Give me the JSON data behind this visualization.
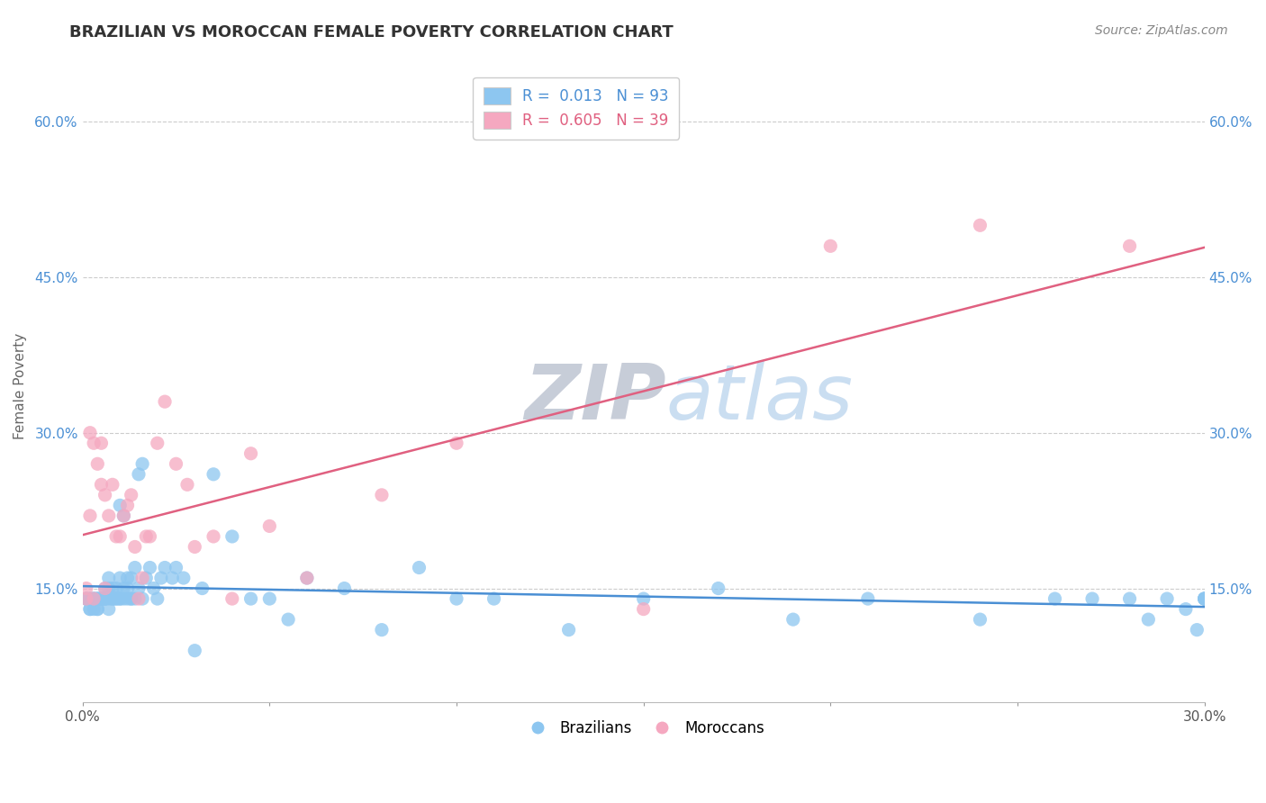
{
  "title": "BRAZILIAN VS MOROCCAN FEMALE POVERTY CORRELATION CHART",
  "source": "Source: ZipAtlas.com",
  "ylabel": "Female Poverty",
  "xlabel": "",
  "xlim": [
    0.0,
    0.3
  ],
  "ylim": [
    0.04,
    0.65
  ],
  "yticks": [
    0.15,
    0.3,
    0.45,
    0.6
  ],
  "ytick_labels": [
    "15.0%",
    "30.0%",
    "45.0%",
    "60.0%"
  ],
  "xticks": [
    0.0,
    0.05,
    0.1,
    0.15,
    0.2,
    0.25,
    0.3
  ],
  "xtick_labels": [
    "0.0%",
    "",
    "",
    "",
    "",
    "",
    "30.0%"
  ],
  "brazil_R": 0.013,
  "brazil_N": 93,
  "morocco_R": 0.605,
  "morocco_N": 39,
  "brazil_color": "#8dc6f0",
  "morocco_color": "#f5a8c0",
  "brazil_line_color": "#4a8fd4",
  "morocco_line_color": "#e06080",
  "brazil_scatter_x": [
    0.001,
    0.001,
    0.001,
    0.002,
    0.002,
    0.002,
    0.002,
    0.003,
    0.003,
    0.003,
    0.003,
    0.004,
    0.004,
    0.004,
    0.004,
    0.004,
    0.005,
    0.005,
    0.005,
    0.005,
    0.005,
    0.006,
    0.006,
    0.006,
    0.006,
    0.007,
    0.007,
    0.007,
    0.007,
    0.008,
    0.008,
    0.008,
    0.009,
    0.009,
    0.009,
    0.01,
    0.01,
    0.01,
    0.01,
    0.011,
    0.011,
    0.011,
    0.012,
    0.012,
    0.012,
    0.013,
    0.013,
    0.013,
    0.014,
    0.014,
    0.015,
    0.015,
    0.016,
    0.016,
    0.017,
    0.018,
    0.019,
    0.02,
    0.021,
    0.022,
    0.024,
    0.025,
    0.027,
    0.03,
    0.032,
    0.035,
    0.04,
    0.045,
    0.05,
    0.055,
    0.06,
    0.07,
    0.08,
    0.09,
    0.1,
    0.11,
    0.13,
    0.15,
    0.17,
    0.19,
    0.21,
    0.24,
    0.26,
    0.27,
    0.28,
    0.285,
    0.29,
    0.295,
    0.298,
    0.3,
    0.3,
    0.3,
    0.3
  ],
  "brazil_scatter_y": [
    0.14,
    0.14,
    0.14,
    0.14,
    0.14,
    0.13,
    0.13,
    0.14,
    0.13,
    0.14,
    0.14,
    0.14,
    0.14,
    0.14,
    0.13,
    0.13,
    0.14,
    0.14,
    0.14,
    0.14,
    0.14,
    0.14,
    0.15,
    0.14,
    0.14,
    0.15,
    0.16,
    0.13,
    0.14,
    0.15,
    0.14,
    0.14,
    0.15,
    0.14,
    0.14,
    0.23,
    0.16,
    0.14,
    0.14,
    0.22,
    0.15,
    0.14,
    0.16,
    0.15,
    0.14,
    0.16,
    0.14,
    0.14,
    0.17,
    0.14,
    0.15,
    0.26,
    0.27,
    0.14,
    0.16,
    0.17,
    0.15,
    0.14,
    0.16,
    0.17,
    0.16,
    0.17,
    0.16,
    0.09,
    0.15,
    0.26,
    0.2,
    0.14,
    0.14,
    0.12,
    0.16,
    0.15,
    0.11,
    0.17,
    0.14,
    0.14,
    0.11,
    0.14,
    0.15,
    0.12,
    0.14,
    0.12,
    0.14,
    0.14,
    0.14,
    0.12,
    0.14,
    0.13,
    0.11,
    0.14,
    0.14,
    0.14,
    0.14
  ],
  "morocco_scatter_x": [
    0.001,
    0.001,
    0.002,
    0.002,
    0.003,
    0.003,
    0.004,
    0.005,
    0.005,
    0.006,
    0.006,
    0.007,
    0.008,
    0.009,
    0.01,
    0.011,
    0.012,
    0.013,
    0.014,
    0.015,
    0.016,
    0.017,
    0.018,
    0.02,
    0.022,
    0.025,
    0.028,
    0.03,
    0.035,
    0.04,
    0.045,
    0.05,
    0.06,
    0.08,
    0.1,
    0.15,
    0.2,
    0.24,
    0.28
  ],
  "morocco_scatter_y": [
    0.14,
    0.15,
    0.3,
    0.22,
    0.29,
    0.14,
    0.27,
    0.29,
    0.25,
    0.24,
    0.15,
    0.22,
    0.25,
    0.2,
    0.2,
    0.22,
    0.23,
    0.24,
    0.19,
    0.14,
    0.16,
    0.2,
    0.2,
    0.29,
    0.33,
    0.27,
    0.25,
    0.19,
    0.2,
    0.14,
    0.28,
    0.21,
    0.16,
    0.24,
    0.29,
    0.13,
    0.48,
    0.5,
    0.48
  ]
}
